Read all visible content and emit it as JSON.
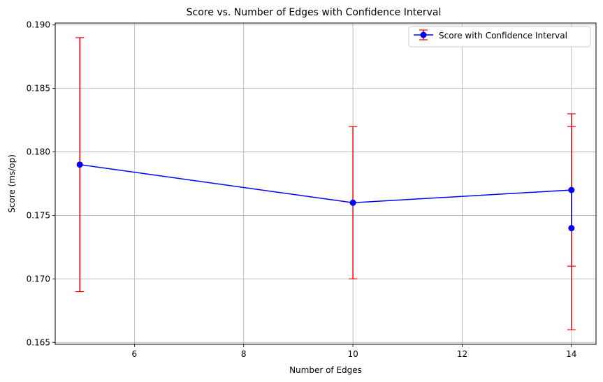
{
  "chart_data": {
    "type": "line",
    "title": "Score vs. Number of Edges with Confidence Interval",
    "xlabel": "Number of Edges",
    "ylabel": "Score (ms/op)",
    "xlim": [
      4.55,
      14.45
    ],
    "ylim": [
      0.16485,
      0.19015
    ],
    "xticks": [
      6,
      8,
      10,
      12,
      14
    ],
    "xtick_labels": [
      "6",
      "8",
      "10",
      "12",
      "14"
    ],
    "yticks": [
      0.165,
      0.17,
      0.175,
      0.18,
      0.185,
      0.19
    ],
    "ytick_labels": [
      "0.165",
      "0.170",
      "0.175",
      "0.180",
      "0.185",
      "0.190"
    ],
    "grid": true,
    "legend_position": "top-right",
    "series": [
      {
        "name": "Score with Confidence Interval",
        "line_color": "#0000ff",
        "error_color": "#ff0000",
        "points": [
          {
            "x": 5,
            "y": 0.179,
            "err_low": 0.169,
            "err_high": 0.189
          },
          {
            "x": 10,
            "y": 0.176,
            "err_low": 0.17,
            "err_high": 0.182
          },
          {
            "x": 14,
            "y": 0.177,
            "err_low": 0.171,
            "err_high": 0.183
          },
          {
            "x": 14,
            "y": 0.174,
            "err_low": 0.166,
            "err_high": 0.182
          }
        ]
      }
    ]
  }
}
